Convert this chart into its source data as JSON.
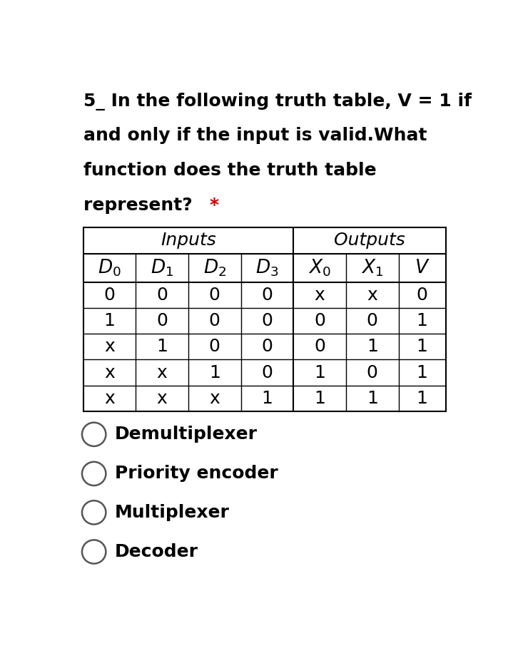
{
  "title_lines": [
    [
      "5_ In the following truth table, V = 1 if",
      false
    ],
    [
      "and only if the input is valid.What",
      false
    ],
    [
      "function does the truth table",
      false
    ],
    [
      "represent? *",
      true
    ]
  ],
  "title_prefix_last": "represent? ",
  "title_star": "*",
  "inputs_label": "Inputs",
  "outputs_label": "Outputs",
  "col_headers": [
    "D₀",
    "D₁",
    "D₂",
    "D₃",
    "X₀",
    "X₁",
    "V"
  ],
  "rows": [
    [
      "0",
      "0",
      "0",
      "0",
      "x",
      "x",
      "0"
    ],
    [
      "1",
      "0",
      "0",
      "0",
      "0",
      "0",
      "1"
    ],
    [
      "x",
      "1",
      "0",
      "0",
      "0",
      "1",
      "1"
    ],
    [
      "x",
      "x",
      "1",
      "0",
      "1",
      "0",
      "1"
    ],
    [
      "x",
      "x",
      "x",
      "1",
      "1",
      "1",
      "1"
    ]
  ],
  "options": [
    "Demultiplexer",
    "Priority encoder",
    "Multiplexer",
    "Decoder"
  ],
  "bg_color": "#ffffff",
  "table_bg": "#ffffff",
  "text_color": "#000000",
  "star_color": "#cc0000",
  "title_fontsize": 18,
  "table_fontsize": 17,
  "header_fontsize": 17,
  "option_fontsize": 18,
  "col_widths": [
    1.0,
    1.0,
    1.0,
    1.0,
    1.0,
    1.0,
    0.9
  ],
  "row_heights": [
    1.0,
    1.1,
    1.0,
    1.0,
    1.0,
    1.0,
    1.0
  ]
}
